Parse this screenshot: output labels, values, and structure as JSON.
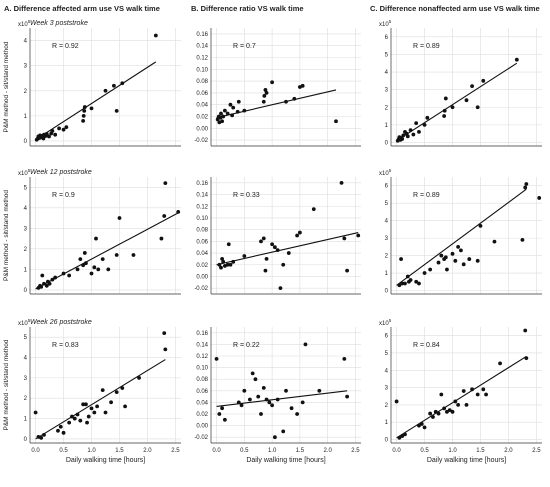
{
  "column_titles": [
    "A. Difference affected arm use VS walk time",
    "B. Difference ratio VS walk time",
    "C. Difference nonaffected arm use VS walk time"
  ],
  "row_titles": [
    "Week 3 poststroke",
    "Week 12 poststroke",
    "Week 26 poststroke"
  ],
  "ylabel": "P&M method - sit/stand method",
  "xlabel": "Daily walking time [hours]",
  "exponent_label": "x10",
  "exponent_sup": "5",
  "colors": {
    "point": "#111111",
    "line": "#111111",
    "grid": "#dddddd",
    "axis": "#333333"
  },
  "chart_data": [
    {
      "type": "scatter",
      "panel": "A-week3",
      "title": "A. Difference affected arm use VS walk time",
      "subtitle": "Week 3 poststroke",
      "ylabel": "P&M method - sit/stand method",
      "xlabel": "",
      "annotation": "R = 0.92",
      "xlim": [
        -0.1,
        2.6
      ],
      "ylim": [
        -0.2,
        4.5
      ],
      "yticks": [
        "0",
        "1",
        "2",
        "3",
        "4"
      ],
      "xticks": [
        "0.0",
        "0.5",
        "1.0",
        "1.5",
        "2.0",
        "2.5"
      ],
      "y_multiplier": "x10^5",
      "show_xticklabels": false,
      "points": [
        [
          0.02,
          0.05
        ],
        [
          0.04,
          0.1
        ],
        [
          0.05,
          0.18
        ],
        [
          0.07,
          0.12
        ],
        [
          0.08,
          0.22
        ],
        [
          0.1,
          0.15
        ],
        [
          0.12,
          0.2
        ],
        [
          0.14,
          0.1
        ],
        [
          0.15,
          0.25
        ],
        [
          0.18,
          0.2
        ],
        [
          0.2,
          0.28
        ],
        [
          0.24,
          0.18
        ],
        [
          0.28,
          0.3
        ],
        [
          0.3,
          0.4
        ],
        [
          0.35,
          0.25
        ],
        [
          0.42,
          0.5
        ],
        [
          0.5,
          0.45
        ],
        [
          0.55,
          0.55
        ],
        [
          0.85,
          0.8
        ],
        [
          0.86,
          1.0
        ],
        [
          0.87,
          1.2
        ],
        [
          0.88,
          1.35
        ],
        [
          1.0,
          1.3
        ],
        [
          1.25,
          2.0
        ],
        [
          1.4,
          2.2
        ],
        [
          1.45,
          1.2
        ],
        [
          1.55,
          2.3
        ],
        [
          2.15,
          4.2
        ]
      ],
      "fit": [
        [
          0.0,
          0.05
        ],
        [
          2.15,
          3.15
        ]
      ]
    },
    {
      "type": "scatter",
      "panel": "B-week3",
      "title": "B. Difference ratio VS walk time",
      "subtitle": "",
      "ylabel": "",
      "xlabel": "",
      "annotation": "R = 0.7",
      "xlim": [
        -0.1,
        2.6
      ],
      "ylim": [
        -0.03,
        0.17
      ],
      "yticks": [
        "-0.02",
        "0.00",
        "0.02",
        "0.04",
        "0.06",
        "0.08",
        "0.10",
        "0.12",
        "0.14",
        "0.16"
      ],
      "xticks": [
        "0.0",
        "0.5",
        "1.0",
        "1.5",
        "2.0",
        "2.5"
      ],
      "show_xticklabels": false,
      "points": [
        [
          0.02,
          0.015
        ],
        [
          0.04,
          0.02
        ],
        [
          0.05,
          0.01
        ],
        [
          0.07,
          0.018
        ],
        [
          0.08,
          0.025
        ],
        [
          0.1,
          0.012
        ],
        [
          0.12,
          0.02
        ],
        [
          0.15,
          0.03
        ],
        [
          0.2,
          0.025
        ],
        [
          0.25,
          0.04
        ],
        [
          0.28,
          0.022
        ],
        [
          0.3,
          0.035
        ],
        [
          0.38,
          0.028
        ],
        [
          0.4,
          0.045
        ],
        [
          0.5,
          0.03
        ],
        [
          0.85,
          0.045
        ],
        [
          0.86,
          0.055
        ],
        [
          0.88,
          0.065
        ],
        [
          0.9,
          0.06
        ],
        [
          1.0,
          0.078
        ],
        [
          1.25,
          0.045
        ],
        [
          1.4,
          0.05
        ],
        [
          1.5,
          0.07
        ],
        [
          1.55,
          0.072
        ],
        [
          2.15,
          0.012
        ]
      ],
      "fit": [
        [
          0.0,
          0.018
        ],
        [
          2.15,
          0.065
        ]
      ]
    },
    {
      "type": "scatter",
      "panel": "C-week3",
      "title": "C. Difference nonaffected arm use VS walk time",
      "subtitle": "",
      "ylabel": "",
      "xlabel": "",
      "annotation": "R = 0.89",
      "xlim": [
        -0.1,
        2.6
      ],
      "ylim": [
        -0.2,
        6.5
      ],
      "yticks": [
        "0",
        "1",
        "2",
        "3",
        "4",
        "5",
        "6"
      ],
      "xticks": [
        "0.0",
        "0.5",
        "1.0",
        "1.5",
        "2.0",
        "2.5"
      ],
      "y_multiplier": "x10^5",
      "show_xticklabels": false,
      "points": [
        [
          0.02,
          0.1
        ],
        [
          0.04,
          0.2
        ],
        [
          0.05,
          0.3
        ],
        [
          0.07,
          0.15
        ],
        [
          0.08,
          0.25
        ],
        [
          0.1,
          0.2
        ],
        [
          0.12,
          0.4
        ],
        [
          0.15,
          0.6
        ],
        [
          0.18,
          0.5
        ],
        [
          0.2,
          0.35
        ],
        [
          0.25,
          0.7
        ],
        [
          0.3,
          0.45
        ],
        [
          0.35,
          1.1
        ],
        [
          0.4,
          0.6
        ],
        [
          0.5,
          1.0
        ],
        [
          0.55,
          1.4
        ],
        [
          0.85,
          1.5
        ],
        [
          0.86,
          1.8
        ],
        [
          0.88,
          2.5
        ],
        [
          1.0,
          2.0
        ],
        [
          1.25,
          2.4
        ],
        [
          1.35,
          3.2
        ],
        [
          1.45,
          2.0
        ],
        [
          1.55,
          3.5
        ],
        [
          2.15,
          4.7
        ]
      ],
      "fit": [
        [
          0.0,
          0.1
        ],
        [
          2.15,
          4.5
        ]
      ]
    },
    {
      "type": "scatter",
      "panel": "A-week12",
      "subtitle": "Week 12 poststroke",
      "ylabel": "P&M method - sit/stand method",
      "xlabel": "",
      "annotation": "R = 0.9",
      "xlim": [
        -0.1,
        2.6
      ],
      "ylim": [
        -0.2,
        5.5
      ],
      "yticks": [
        "0",
        "1",
        "2",
        "3",
        "4",
        "5"
      ],
      "xticks": [
        "0.0",
        "0.5",
        "1.0",
        "1.5",
        "2.0",
        "2.5"
      ],
      "y_multiplier": "x10^5",
      "show_xticklabels": false,
      "points": [
        [
          0.05,
          0.1
        ],
        [
          0.08,
          0.2
        ],
        [
          0.1,
          0.15
        ],
        [
          0.12,
          0.7
        ],
        [
          0.15,
          0.3
        ],
        [
          0.2,
          0.2
        ],
        [
          0.22,
          0.4
        ],
        [
          0.25,
          0.3
        ],
        [
          0.3,
          0.5
        ],
        [
          0.35,
          0.6
        ],
        [
          0.5,
          0.8
        ],
        [
          0.6,
          0.7
        ],
        [
          0.75,
          1.0
        ],
        [
          0.8,
          1.5
        ],
        [
          0.85,
          1.2
        ],
        [
          0.88,
          1.8
        ],
        [
          0.9,
          1.3
        ],
        [
          1.0,
          0.8
        ],
        [
          1.05,
          1.1
        ],
        [
          1.08,
          2.5
        ],
        [
          1.12,
          1.0
        ],
        [
          1.2,
          1.5
        ],
        [
          1.3,
          1.0
        ],
        [
          1.45,
          1.7
        ],
        [
          1.5,
          3.5
        ],
        [
          1.75,
          1.7
        ],
        [
          2.25,
          2.5
        ],
        [
          2.3,
          3.6
        ],
        [
          2.32,
          5.2
        ],
        [
          2.55,
          3.8
        ]
      ],
      "fit": [
        [
          0.0,
          0.05
        ],
        [
          2.55,
          3.75
        ]
      ]
    },
    {
      "type": "scatter",
      "panel": "B-week12",
      "subtitle": "",
      "ylabel": "",
      "xlabel": "",
      "annotation": "R = 0.33",
      "xlim": [
        -0.1,
        2.6
      ],
      "ylim": [
        -0.03,
        0.17
      ],
      "yticks": [
        "-0.02",
        "0.00",
        "0.02",
        "0.04",
        "0.06",
        "0.08",
        "0.10",
        "0.12",
        "0.14",
        "0.16"
      ],
      "xticks": [
        "0.0",
        "0.5",
        "1.0",
        "1.5",
        "2.0",
        "2.5"
      ],
      "show_xticklabels": false,
      "points": [
        [
          0.05,
          0.02
        ],
        [
          0.08,
          0.015
        ],
        [
          0.1,
          0.03
        ],
        [
          0.12,
          0.025
        ],
        [
          0.15,
          0.018
        ],
        [
          0.2,
          0.02
        ],
        [
          0.22,
          0.055
        ],
        [
          0.25,
          0.02
        ],
        [
          0.3,
          0.025
        ],
        [
          0.5,
          0.035
        ],
        [
          0.8,
          0.06
        ],
        [
          0.85,
          0.065
        ],
        [
          0.88,
          0.01
        ],
        [
          0.9,
          0.03
        ],
        [
          1.0,
          0.055
        ],
        [
          1.05,
          0.05
        ],
        [
          1.1,
          0.045
        ],
        [
          1.15,
          -0.02
        ],
        [
          1.2,
          0.02
        ],
        [
          1.3,
          0.04
        ],
        [
          1.45,
          0.07
        ],
        [
          1.5,
          0.075
        ],
        [
          1.75,
          0.115
        ],
        [
          2.25,
          0.16
        ],
        [
          2.3,
          0.065
        ],
        [
          2.35,
          0.01
        ],
        [
          2.55,
          0.07
        ]
      ],
      "fit": [
        [
          0.0,
          0.02
        ],
        [
          2.55,
          0.075
        ]
      ]
    },
    {
      "type": "scatter",
      "panel": "C-week12",
      "subtitle": "",
      "ylabel": "",
      "xlabel": "",
      "annotation": "R = 0.89",
      "xlim": [
        -0.1,
        2.6
      ],
      "ylim": [
        -0.2,
        6.5
      ],
      "yticks": [
        "0",
        "1",
        "2",
        "3",
        "4",
        "5",
        "6"
      ],
      "xticks": [
        "0.0",
        "0.5",
        "1.0",
        "1.5",
        "2.0",
        "2.5"
      ],
      "y_multiplier": "x10^5",
      "show_xticklabels": false,
      "points": [
        [
          0.05,
          0.3
        ],
        [
          0.08,
          1.8
        ],
        [
          0.1,
          0.4
        ],
        [
          0.15,
          0.4
        ],
        [
          0.2,
          0.8
        ],
        [
          0.22,
          0.5
        ],
        [
          0.25,
          0.6
        ],
        [
          0.35,
          0.5
        ],
        [
          0.4,
          0.4
        ],
        [
          0.5,
          1.0
        ],
        [
          0.6,
          1.2
        ],
        [
          0.75,
          1.6
        ],
        [
          0.8,
          2.0
        ],
        [
          0.85,
          1.8
        ],
        [
          0.88,
          1.9
        ],
        [
          0.9,
          1.2
        ],
        [
          1.0,
          2.1
        ],
        [
          1.05,
          1.7
        ],
        [
          1.1,
          2.5
        ],
        [
          1.15,
          2.3
        ],
        [
          1.2,
          1.5
        ],
        [
          1.3,
          1.8
        ],
        [
          1.45,
          1.7
        ],
        [
          1.5,
          3.7
        ],
        [
          1.75,
          2.8
        ],
        [
          2.25,
          2.9
        ],
        [
          2.3,
          5.9
        ],
        [
          2.32,
          6.1
        ],
        [
          2.55,
          5.3
        ]
      ],
      "fit": [
        [
          0.0,
          0.3
        ],
        [
          2.32,
          5.8
        ]
      ]
    },
    {
      "type": "scatter",
      "panel": "A-week26",
      "subtitle": "Week 26 poststroke",
      "ylabel": "P&M method - sit/stand method",
      "xlabel": "Daily walking time [hours]",
      "annotation": "R = 0.83",
      "xlim": [
        -0.1,
        2.6
      ],
      "ylim": [
        -0.2,
        5.5
      ],
      "yticks": [
        "0",
        "1",
        "2",
        "3",
        "4",
        "5"
      ],
      "xticks": [
        "0.0",
        "0.5",
        "1.0",
        "1.5",
        "2.0",
        "2.5"
      ],
      "y_multiplier": "x10^5",
      "show_xticklabels": true,
      "points": [
        [
          0.0,
          1.3
        ],
        [
          0.05,
          0.1
        ],
        [
          0.1,
          0.05
        ],
        [
          0.15,
          0.2
        ],
        [
          0.4,
          0.4
        ],
        [
          0.45,
          0.6
        ],
        [
          0.5,
          0.3
        ],
        [
          0.6,
          0.8
        ],
        [
          0.65,
          1.1
        ],
        [
          0.7,
          1.0
        ],
        [
          0.75,
          1.2
        ],
        [
          0.8,
          0.9
        ],
        [
          0.85,
          1.7
        ],
        [
          0.9,
          1.7
        ],
        [
          0.92,
          0.8
        ],
        [
          0.95,
          1.1
        ],
        [
          1.0,
          1.5
        ],
        [
          1.05,
          1.3
        ],
        [
          1.1,
          1.6
        ],
        [
          1.2,
          2.4
        ],
        [
          1.25,
          1.3
        ],
        [
          1.35,
          1.8
        ],
        [
          1.45,
          2.3
        ],
        [
          1.55,
          2.5
        ],
        [
          1.6,
          1.6
        ],
        [
          1.85,
          3.0
        ],
        [
          2.3,
          5.2
        ],
        [
          2.32,
          4.4
        ]
      ],
      "fit": [
        [
          0.0,
          0.0
        ],
        [
          2.32,
          3.9
        ]
      ]
    },
    {
      "type": "scatter",
      "panel": "B-week26",
      "subtitle": "",
      "ylabel": "",
      "xlabel": "Daily walking time [hours]",
      "annotation": "R = 0.22",
      "xlim": [
        -0.1,
        2.6
      ],
      "ylim": [
        -0.03,
        0.17
      ],
      "yticks": [
        "-0.02",
        "0.00",
        "0.02",
        "0.04",
        "0.06",
        "0.08",
        "0.10",
        "0.12",
        "0.14",
        "0.16"
      ],
      "xticks": [
        "0.0",
        "0.5",
        "1.0",
        "1.5",
        "2.0",
        "2.5"
      ],
      "show_xticklabels": true,
      "points": [
        [
          0.0,
          0.115
        ],
        [
          0.05,
          0.02
        ],
        [
          0.1,
          0.03
        ],
        [
          0.15,
          0.01
        ],
        [
          0.4,
          0.04
        ],
        [
          0.45,
          0.035
        ],
        [
          0.5,
          0.06
        ],
        [
          0.6,
          0.045
        ],
        [
          0.65,
          0.09
        ],
        [
          0.7,
          0.08
        ],
        [
          0.75,
          0.05
        ],
        [
          0.8,
          0.02
        ],
        [
          0.85,
          0.065
        ],
        [
          0.9,
          0.045
        ],
        [
          0.95,
          0.04
        ],
        [
          1.0,
          0.035
        ],
        [
          1.05,
          -0.02
        ],
        [
          1.1,
          0.045
        ],
        [
          1.2,
          -0.01
        ],
        [
          1.25,
          0.06
        ],
        [
          1.35,
          0.03
        ],
        [
          1.45,
          0.02
        ],
        [
          1.55,
          0.04
        ],
        [
          1.6,
          0.14
        ],
        [
          1.85,
          0.06
        ],
        [
          2.3,
          0.115
        ],
        [
          2.35,
          0.05
        ]
      ],
      "fit": [
        [
          0.0,
          0.033
        ],
        [
          2.35,
          0.06
        ]
      ]
    },
    {
      "type": "scatter",
      "panel": "C-week26",
      "subtitle": "",
      "ylabel": "",
      "xlabel": "Daily walking time [hours]",
      "annotation": "R = 0.84",
      "xlim": [
        -0.1,
        2.6
      ],
      "ylim": [
        -0.2,
        6.5
      ],
      "yticks": [
        "0",
        "1",
        "2",
        "3",
        "4",
        "5",
        "6"
      ],
      "xticks": [
        "0.0",
        "0.5",
        "1.0",
        "1.5",
        "2.0",
        "2.5"
      ],
      "y_multiplier": "x10^5",
      "show_xticklabels": true,
      "points": [
        [
          0.0,
          2.2
        ],
        [
          0.05,
          0.1
        ],
        [
          0.1,
          0.2
        ],
        [
          0.15,
          0.3
        ],
        [
          0.4,
          0.8
        ],
        [
          0.45,
          0.9
        ],
        [
          0.5,
          0.7
        ],
        [
          0.6,
          1.5
        ],
        [
          0.65,
          1.3
        ],
        [
          0.7,
          1.6
        ],
        [
          0.75,
          1.5
        ],
        [
          0.8,
          2.6
        ],
        [
          0.85,
          1.8
        ],
        [
          0.9,
          1.6
        ],
        [
          0.95,
          1.7
        ],
        [
          1.0,
          1.6
        ],
        [
          1.05,
          2.2
        ],
        [
          1.1,
          2.0
        ],
        [
          1.2,
          2.8
        ],
        [
          1.25,
          2.0
        ],
        [
          1.35,
          2.9
        ],
        [
          1.45,
          2.6
        ],
        [
          1.55,
          2.9
        ],
        [
          1.6,
          2.6
        ],
        [
          1.85,
          4.4
        ],
        [
          2.3,
          6.3
        ],
        [
          2.32,
          4.7
        ]
      ],
      "fit": [
        [
          0.0,
          0.1
        ],
        [
          2.32,
          4.8
        ]
      ]
    }
  ]
}
